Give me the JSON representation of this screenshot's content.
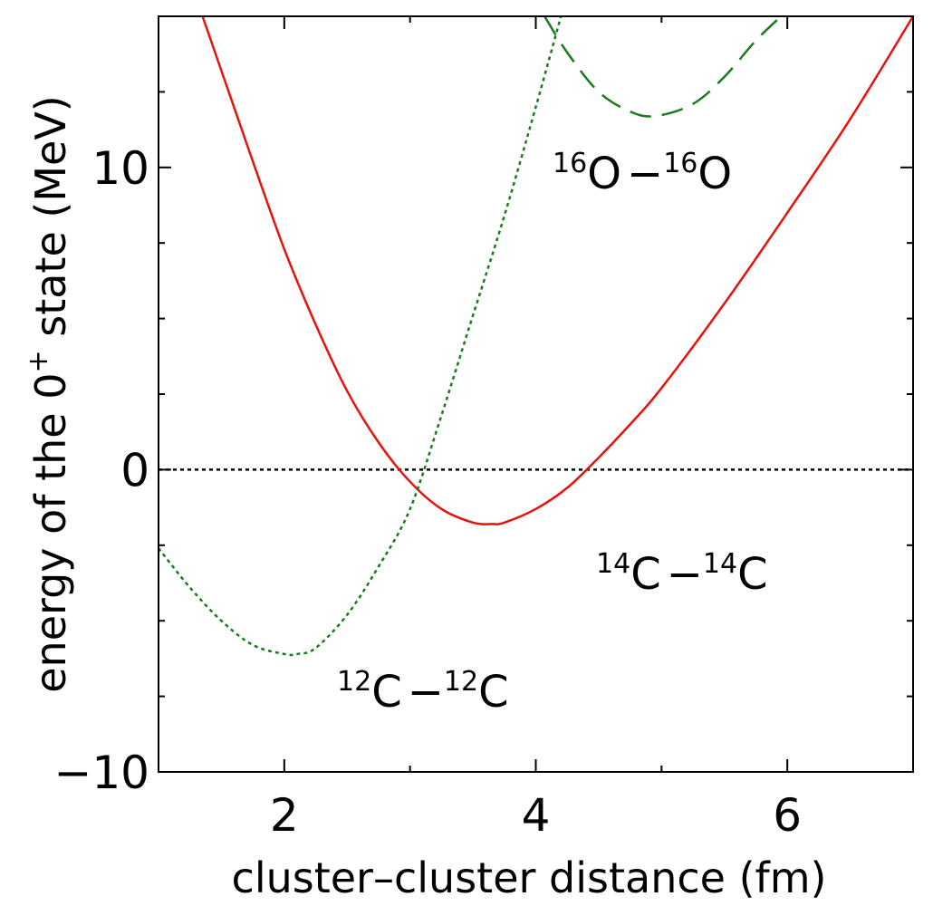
{
  "chart_data": {
    "type": "line",
    "xlabel": "cluster–cluster distance (fm)",
    "ylabel_parts": {
      "before": "energy of the 0",
      "sup": "+",
      "after": " state (MeV)"
    },
    "xlim": [
      1.0,
      7.0
    ],
    "ylim": [
      -10,
      15
    ],
    "xticks": [
      2,
      4,
      6
    ],
    "xtick_labels": [
      "2",
      "4",
      "6"
    ],
    "yticks": [
      -10,
      0,
      10
    ],
    "ytick_labels": [
      "−10",
      "0",
      "10"
    ],
    "x_minor_step": 1,
    "y_minor_step": 2.5,
    "reference_line": {
      "y": 0,
      "style": "dotted",
      "color": "#000000"
    },
    "series": [
      {
        "id": "c14",
        "color": "#e8120c",
        "dash": "solid",
        "label": {
          "mass1": "14",
          "el1": "C",
          "sep": "−",
          "mass2": "14",
          "el2": "C"
        },
        "x": [
          1.35,
          1.5,
          1.75,
          2.0,
          2.25,
          2.5,
          2.75,
          3.0,
          3.25,
          3.5,
          3.65,
          3.75,
          4.0,
          4.25,
          4.5,
          4.75,
          5.0,
          5.5,
          6.0,
          6.5,
          7.0
        ],
        "y": [
          15.0,
          13.2,
          10.2,
          7.3,
          4.8,
          2.6,
          0.9,
          -0.4,
          -1.3,
          -1.75,
          -1.8,
          -1.75,
          -1.3,
          -0.6,
          0.4,
          1.5,
          2.7,
          5.5,
          8.5,
          11.6,
          15.0
        ]
      },
      {
        "id": "c12",
        "color": "#1b7a1b",
        "dash": "dotted",
        "label": {
          "mass1": "12",
          "el1": "C",
          "sep": "−",
          "mass2": "12",
          "el2": "C"
        },
        "x": [
          1.0,
          1.25,
          1.5,
          1.75,
          2.0,
          2.1,
          2.25,
          2.5,
          2.75,
          3.0,
          3.25,
          3.5,
          3.75,
          4.0,
          4.2
        ],
        "y": [
          -2.6,
          -3.9,
          -5.0,
          -5.8,
          -6.1,
          -6.1,
          -5.9,
          -4.8,
          -3.2,
          -1.3,
          1.8,
          5.1,
          8.4,
          12.0,
          15.0
        ]
      },
      {
        "id": "o16",
        "color": "#1b7a1b",
        "dash": "dashed",
        "label": {
          "mass1": "16",
          "el1": "O",
          "sep": "−",
          "mass2": "16",
          "el2": "O"
        },
        "x": [
          4.07,
          4.25,
          4.5,
          4.75,
          4.95,
          5.25,
          5.5,
          5.75,
          5.95
        ],
        "y": [
          15.0,
          13.8,
          12.5,
          11.85,
          11.7,
          12.1,
          13.0,
          14.2,
          15.0
        ]
      }
    ]
  }
}
